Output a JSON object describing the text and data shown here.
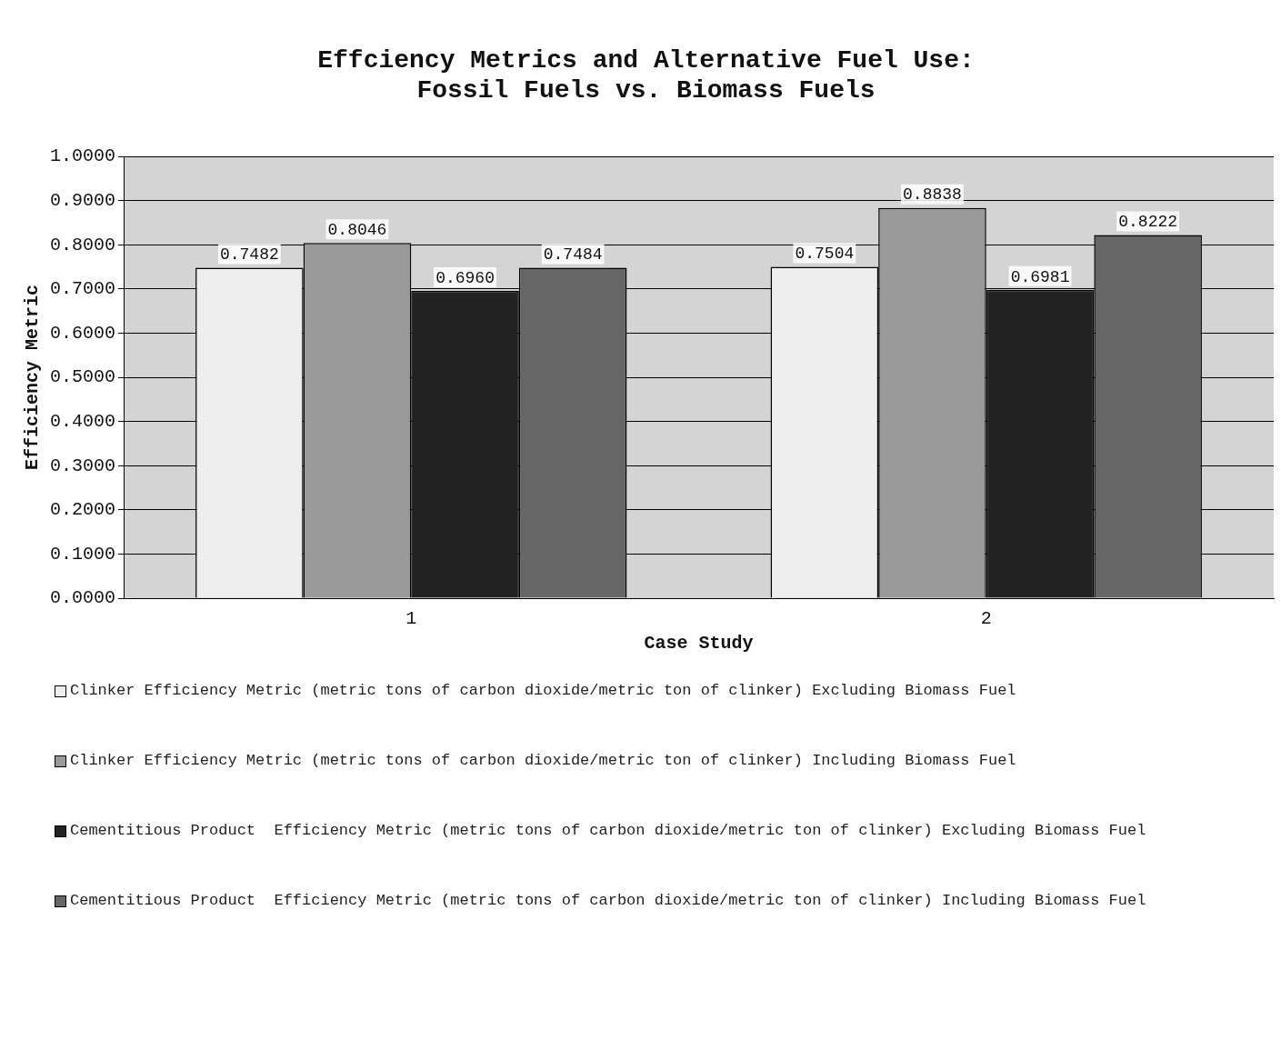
{
  "chart_data": {
    "type": "bar",
    "title": [
      "Effciency Metrics and Alternative Fuel Use:",
      "Fossil Fuels vs. Biomass Fuels"
    ],
    "xlabel": "Case Study",
    "ylabel": "Efficiency Metric",
    "categories": [
      "1",
      "2"
    ],
    "series": [
      {
        "name": "Clinker Efficiency Metric (metric tons of carbon dioxide/metric ton of clinker) Excluding Biomass Fuel",
        "color": "#eeeeee",
        "values": [
          0.7482,
          0.7504
        ],
        "value_labels": [
          "0.7482",
          "0.7504"
        ]
      },
      {
        "name": "Clinker Efficiency Metric (metric tons of carbon dioxide/metric ton of clinker) Including Biomass Fuel",
        "color": "#999999",
        "values": [
          0.8046,
          0.8838
        ],
        "value_labels": [
          "0.8046",
          "0.8838"
        ]
      },
      {
        "name": "Cementitious Product  Efficiency Metric (metric tons of carbon dioxide/metric ton of clinker) Excluding Biomass Fuel",
        "color": "#222222",
        "values": [
          0.696,
          0.6981
        ],
        "value_labels": [
          "0.6960",
          "0.6981"
        ]
      },
      {
        "name": "Cementitious Product  Efficiency Metric (metric tons of carbon dioxide/metric ton of clinker) Including Biomass Fuel",
        "color": "#666666",
        "values": [
          0.7484,
          0.8222
        ],
        "value_labels": [
          "0.7484",
          "0.8222"
        ]
      }
    ],
    "ylim": [
      0,
      1
    ],
    "yticks": [
      {
        "value": 0,
        "label": "0.0000"
      },
      {
        "value": 0.1,
        "label": "0.1000"
      },
      {
        "value": 0.2,
        "label": "0.2000"
      },
      {
        "value": 0.3,
        "label": "0.3000"
      },
      {
        "value": 0.4,
        "label": "0.4000"
      },
      {
        "value": 0.5,
        "label": "0.5000"
      },
      {
        "value": 0.6,
        "label": "0.6000"
      },
      {
        "value": 0.7,
        "label": "0.7000"
      },
      {
        "value": 0.8,
        "label": "0.8000"
      },
      {
        "value": 0.9,
        "label": "0.9000"
      },
      {
        "value": 1,
        "label": "1.0000"
      }
    ],
    "grid": "y",
    "legend": "bottom"
  }
}
